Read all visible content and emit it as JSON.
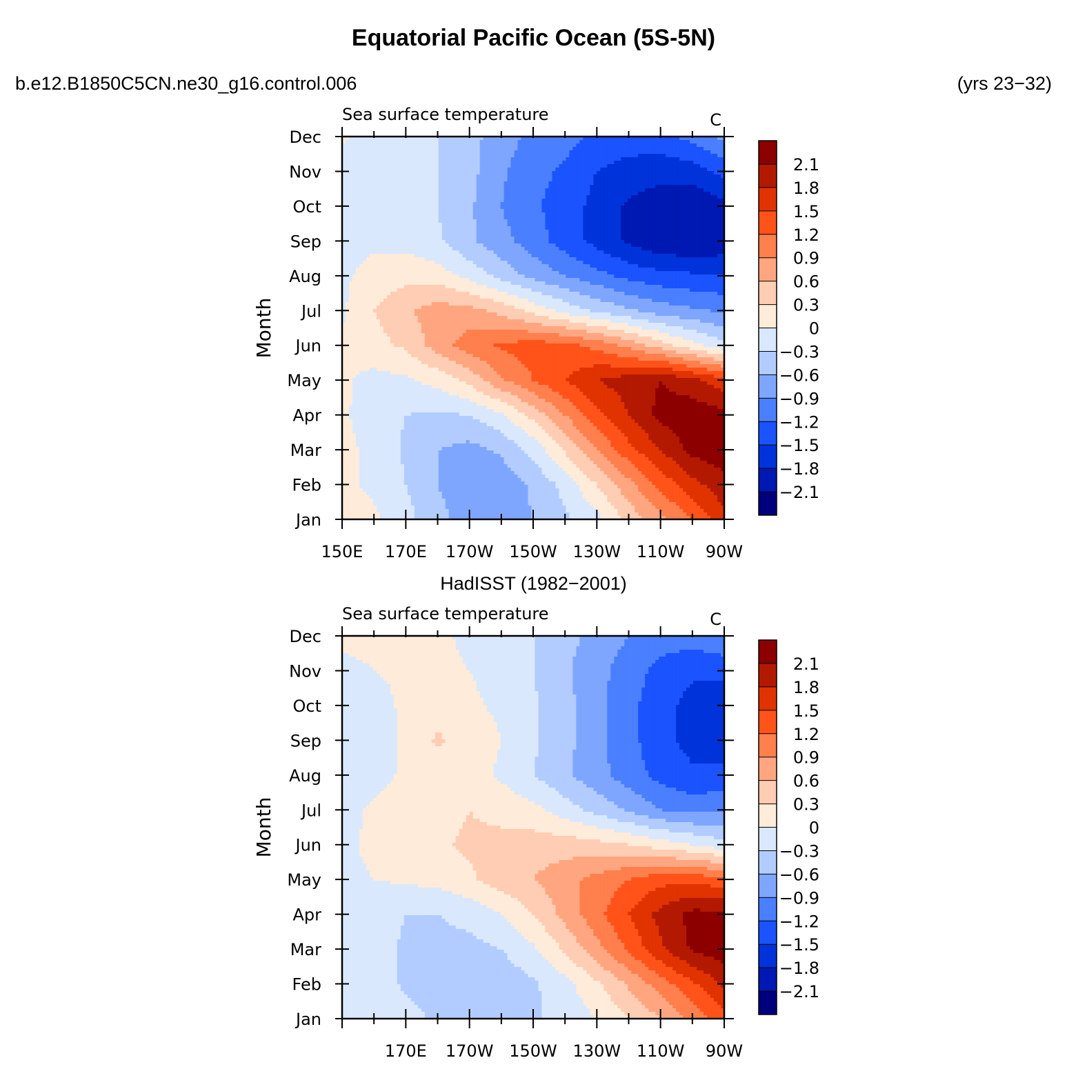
{
  "header": {
    "title": "Equatorial Pacific Ocean (5S-5N)",
    "case_label": "b.e12.B1850C5CN.ne30_g16.control.006",
    "years_label": "(yrs 23−32)"
  },
  "colorbar": {
    "labels": [
      "2.1",
      "1.8",
      "1.5",
      "1.2",
      "0.9",
      "0.6",
      "0.3",
      "0",
      "−0.3",
      "−0.6",
      "−0.9",
      "−1.2",
      "−1.5",
      "−1.8",
      "−2.1"
    ],
    "levels": [
      -2.1,
      -1.8,
      -1.5,
      -1.2,
      -0.9,
      -0.6,
      -0.3,
      0,
      0.3,
      0.6,
      0.9,
      1.2,
      1.5,
      1.8,
      2.1
    ],
    "colors": [
      "#00007f",
      "#0019b3",
      "#0033d9",
      "#1a53ff",
      "#4a7fff",
      "#7fa6ff",
      "#b2ccff",
      "#d9e8fd",
      "#ffebd9",
      "#ffcdb3",
      "#ffa680",
      "#ff7f4d",
      "#ff531a",
      "#e03300",
      "#b31900",
      "#8c0000"
    ]
  },
  "chart_data": [
    {
      "type": "heatmap",
      "panel_title": "",
      "left_string": "Sea surface temperature",
      "right_string": "C",
      "ylabel": "Month",
      "x_tick_labels": [
        "150E",
        "170E",
        "170W",
        "150W",
        "130W",
        "110W",
        "90W"
      ],
      "x_tick_lon": [
        150,
        170,
        190,
        210,
        230,
        250,
        270
      ],
      "y_tick_labels": [
        "Jan",
        "Feb",
        "Mar",
        "Apr",
        "May",
        "Jun",
        "Jul",
        "Aug",
        "Sep",
        "Oct",
        "Nov",
        "Dec"
      ],
      "xlim": [
        150,
        270
      ],
      "ylim": [
        1,
        12
      ],
      "lon": [
        150,
        160,
        170,
        180,
        190,
        200,
        210,
        220,
        230,
        240,
        250,
        260,
        270
      ],
      "months": [
        1,
        2,
        3,
        4,
        5,
        6,
        7,
        8,
        9,
        10,
        11,
        12
      ],
      "values": [
        [
          0.1,
          0.05,
          -0.2,
          -0.5,
          -0.75,
          -0.75,
          -0.6,
          -0.35,
          -0.1,
          0.4,
          0.8,
          1.2,
          1.7
        ],
        [
          0.05,
          -0.05,
          -0.3,
          -0.6,
          -0.8,
          -0.8,
          -0.55,
          -0.2,
          0.3,
          0.8,
          1.3,
          1.7,
          2.0
        ],
        [
          0.1,
          -0.1,
          -0.35,
          -0.6,
          -0.7,
          -0.55,
          -0.2,
          0.35,
          0.9,
          1.4,
          1.8,
          2.2,
          2.3
        ],
        [
          0.05,
          -0.15,
          -0.3,
          -0.35,
          -0.3,
          -0.05,
          0.4,
          0.9,
          1.4,
          1.8,
          2.2,
          2.3,
          2.2
        ],
        [
          0.05,
          -0.1,
          -0.05,
          0.1,
          0.4,
          0.85,
          1.2,
          1.5,
          1.8,
          1.95,
          2.1,
          1.9,
          1.6
        ],
        [
          0.05,
          0.2,
          0.35,
          0.75,
          1.05,
          1.25,
          1.35,
          1.3,
          1.1,
          0.8,
          0.45,
          0.1,
          -0.2
        ],
        [
          -0.05,
          0.3,
          0.55,
          0.75,
          0.7,
          0.5,
          0.2,
          -0.1,
          -0.35,
          -0.55,
          -0.75,
          -0.85,
          -0.95
        ],
        [
          -0.05,
          0.1,
          0.2,
          0.15,
          -0.1,
          -0.4,
          -0.7,
          -0.9,
          -1.1,
          -1.3,
          -1.4,
          -1.45,
          -1.5
        ],
        [
          -0.15,
          -0.05,
          -0.1,
          -0.25,
          -0.55,
          -0.8,
          -1.05,
          -1.35,
          -1.6,
          -1.85,
          -2.05,
          -2.1,
          -2.0
        ],
        [
          -0.2,
          -0.15,
          -0.2,
          -0.3,
          -0.55,
          -0.9,
          -1.15,
          -1.35,
          -1.6,
          -1.85,
          -1.95,
          -2.05,
          -1.9
        ],
        [
          -0.2,
          -0.2,
          -0.25,
          -0.3,
          -0.5,
          -0.85,
          -1.1,
          -1.25,
          -1.5,
          -1.65,
          -1.7,
          -1.65,
          -1.4
        ],
        [
          0.05,
          -0.15,
          -0.2,
          -0.3,
          -0.5,
          -0.75,
          -1.0,
          -1.1,
          -1.25,
          -1.3,
          -1.3,
          -1.1,
          -0.8
        ]
      ]
    },
    {
      "type": "heatmap",
      "panel_title": "HadISST (1982−2001)",
      "left_string": "Sea surface temperature",
      "right_string": "C",
      "ylabel": "Month",
      "x_tick_labels": [
        "170E",
        "170W",
        "150W",
        "130W",
        "110W",
        "90W"
      ],
      "x_tick_lon": [
        170,
        190,
        210,
        230,
        250,
        270
      ],
      "y_tick_labels": [
        "Jan",
        "Feb",
        "Mar",
        "Apr",
        "May",
        "Jun",
        "Jul",
        "Aug",
        "Sep",
        "Oct",
        "Nov",
        "Dec"
      ],
      "xlim": [
        150,
        270
      ],
      "ylim": [
        1,
        12
      ],
      "lon": [
        150,
        160,
        170,
        180,
        190,
        200,
        210,
        220,
        230,
        240,
        250,
        260,
        270
      ],
      "months": [
        1,
        2,
        3,
        4,
        5,
        6,
        7,
        8,
        9,
        10,
        11,
        12
      ],
      "values": [
        [
          0.0,
          -0.1,
          -0.2,
          -0.35,
          -0.45,
          -0.45,
          -0.35,
          -0.2,
          0.0,
          0.3,
          0.6,
          1.0,
          1.4
        ],
        [
          -0.05,
          -0.15,
          -0.35,
          -0.45,
          -0.5,
          -0.5,
          -0.35,
          -0.1,
          0.25,
          0.65,
          1.05,
          1.45,
          1.85
        ],
        [
          -0.05,
          -0.15,
          -0.35,
          -0.4,
          -0.4,
          -0.3,
          -0.05,
          0.35,
          0.8,
          1.25,
          1.75,
          2.15,
          2.3
        ],
        [
          -0.1,
          -0.2,
          -0.3,
          -0.3,
          -0.2,
          0.0,
          0.3,
          0.7,
          1.1,
          1.5,
          1.9,
          2.2,
          2.2
        ],
        [
          -0.05,
          0.0,
          0.05,
          0.1,
          0.25,
          0.45,
          0.6,
          0.8,
          1.0,
          1.2,
          1.4,
          1.4,
          1.3
        ],
        [
          -0.05,
          0.05,
          0.15,
          0.25,
          0.35,
          0.4,
          0.45,
          0.45,
          0.4,
          0.3,
          0.15,
          0.0,
          -0.2
        ],
        [
          -0.1,
          0.05,
          0.15,
          0.2,
          0.3,
          0.2,
          0.1,
          -0.15,
          -0.4,
          -0.65,
          -0.9,
          -1.0,
          -0.95
        ],
        [
          -0.2,
          -0.1,
          0.05,
          0.15,
          0.15,
          -0.05,
          -0.3,
          -0.55,
          -0.8,
          -1.05,
          -1.3,
          -1.45,
          -1.4
        ],
        [
          -0.25,
          -0.15,
          0.05,
          0.35,
          0.15,
          0.0,
          -0.25,
          -0.5,
          -0.8,
          -1.1,
          -1.4,
          -1.6,
          -1.7
        ],
        [
          -0.15,
          -0.1,
          0.05,
          0.15,
          0.05,
          -0.05,
          -0.25,
          -0.5,
          -0.8,
          -1.1,
          -1.4,
          -1.6,
          -1.7
        ],
        [
          -0.05,
          0.0,
          0.05,
          0.05,
          0.0,
          -0.1,
          -0.3,
          -0.55,
          -0.8,
          -1.05,
          -1.3,
          -1.45,
          -1.4
        ],
        [
          0.05,
          0.05,
          0.1,
          0.05,
          -0.05,
          -0.15,
          -0.3,
          -0.5,
          -0.7,
          -0.9,
          -1.05,
          -1.05,
          -0.95
        ]
      ]
    }
  ]
}
